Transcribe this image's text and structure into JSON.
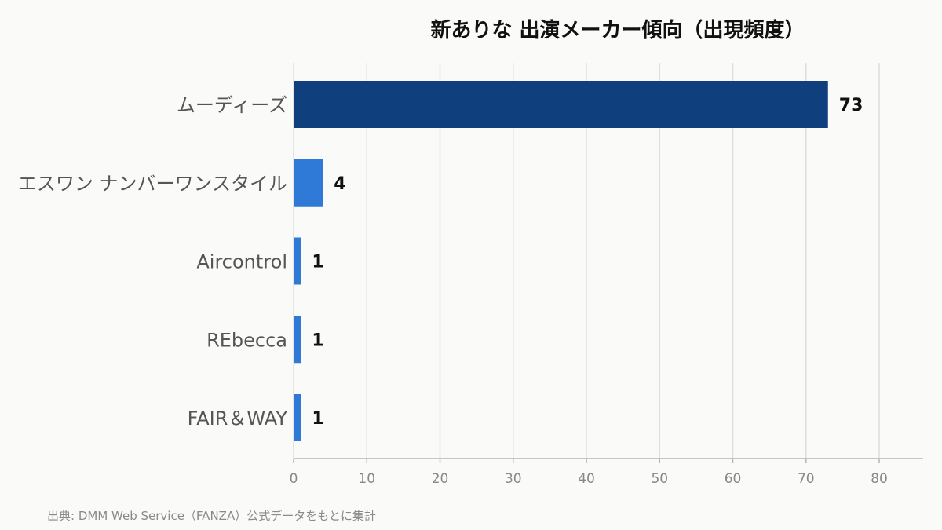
{
  "chart_data": {
    "type": "bar",
    "orientation": "horizontal",
    "title": "新ありな 出演メーカー傾向（出現頻度）",
    "categories": [
      "ムーディーズ",
      "エスワン ナンバーワンスタイル",
      "Aircontrol",
      "REbecca",
      "FAIR＆WAY"
    ],
    "values": [
      73,
      4,
      1,
      1,
      1
    ],
    "data_labels": [
      "73",
      "4",
      "1",
      "1",
      "1"
    ],
    "xlim": [
      0,
      86
    ],
    "x_ticks": [
      0,
      10,
      20,
      30,
      40,
      50,
      60,
      70,
      80
    ],
    "xlabel": "",
    "ylabel": "",
    "grid": true,
    "colors": {
      "highlight": "#0f3f7d",
      "default": "#2e7ad6",
      "grid": "#dedede",
      "axis": "#b5b5b5"
    }
  },
  "source_note": "出典: DMM Web Service（FANZA）公式データをもとに集計"
}
